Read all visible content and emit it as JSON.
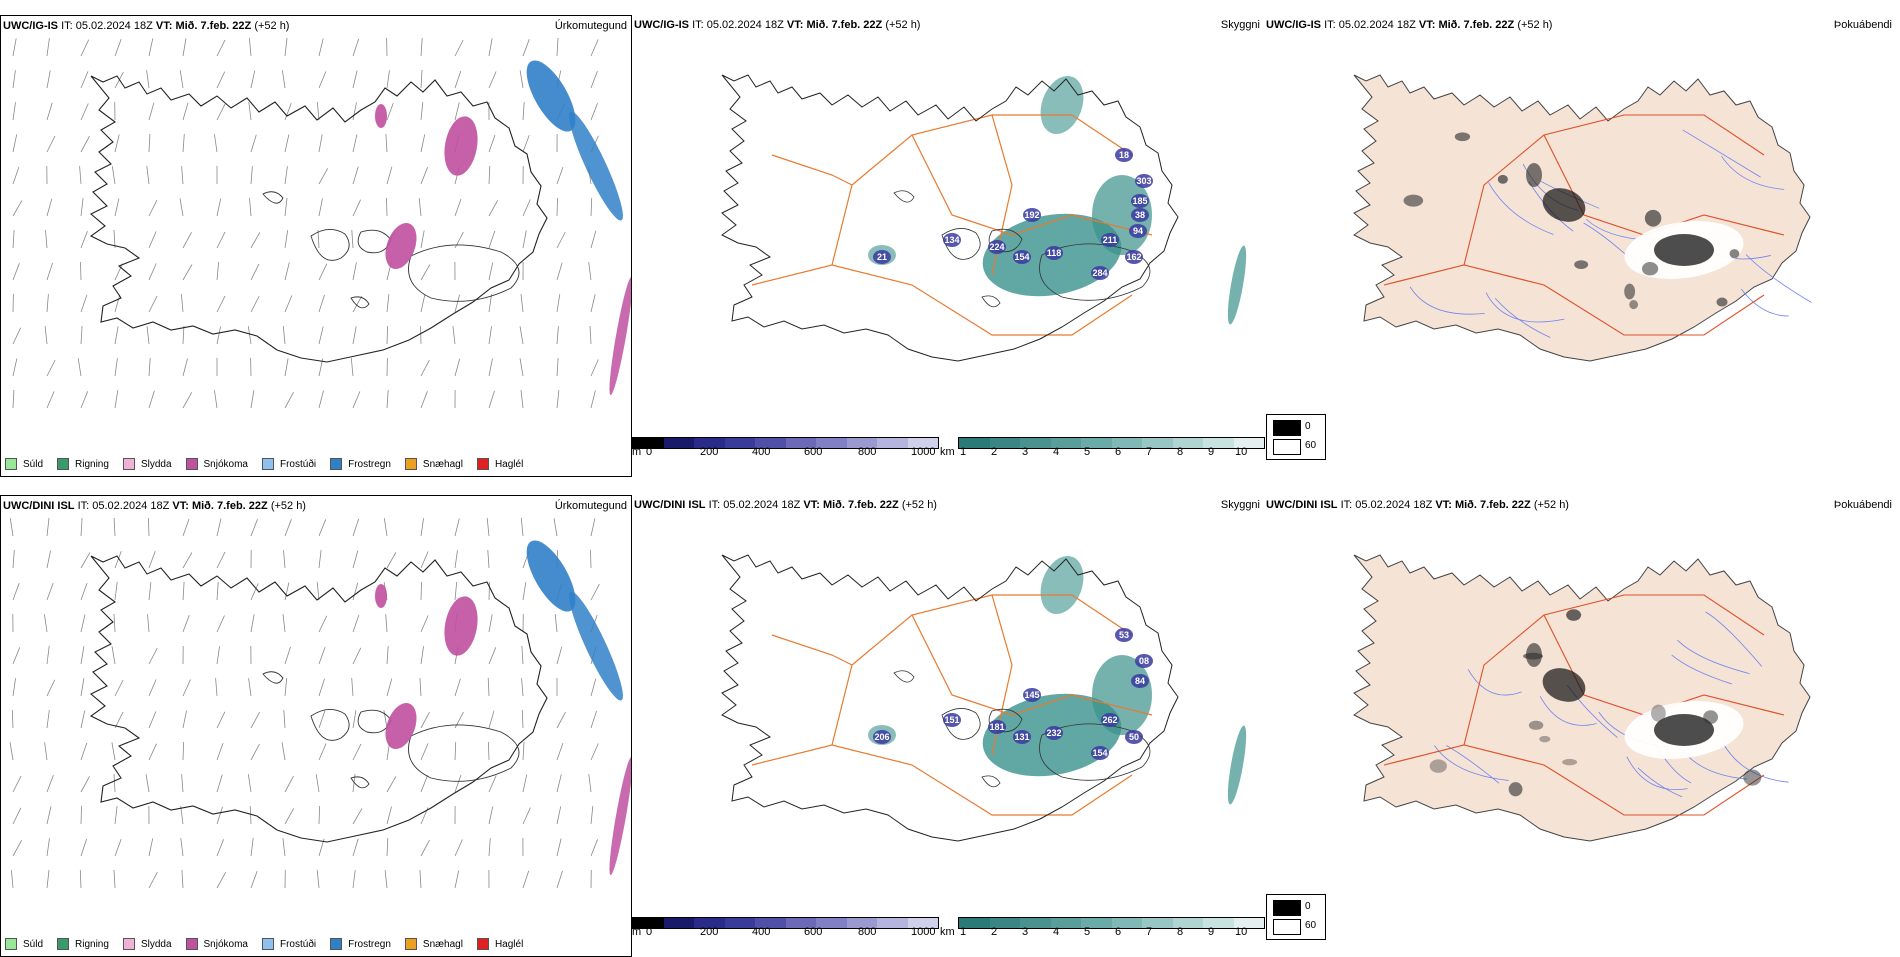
{
  "rows": [
    {
      "model": "UWC/IG-IS",
      "it_label": "IT:",
      "it_value": "05.02.2024 18Z",
      "vt_label": "VT:",
      "vt_value": "Mið. 7.feb. 22Z",
      "lead": "(+52 h)",
      "titles": {
        "precip": "Úrkomutegund",
        "vis": "Skyggni",
        "fog": "Þokuábendi"
      },
      "ceiling_labels": [
        "134",
        "21",
        "224",
        "154",
        "118",
        "192",
        "211",
        "162",
        "284",
        "18",
        "303",
        "185",
        "38",
        "94"
      ]
    },
    {
      "model": "UWC/DINI ISL",
      "it_label": "IT:",
      "it_value": "05.02.2024 18Z",
      "vt_label": "VT:",
      "vt_value": "Mið. 7.feb. 22Z",
      "lead": "(+52 h)",
      "titles": {
        "precip": "Úrkomutegund",
        "vis": "Skyggni",
        "fog": "Þokuábendi"
      },
      "ceiling_labels": [
        "151",
        "206",
        "181",
        "131",
        "232",
        "145",
        "262",
        "50",
        "154",
        "53",
        "08",
        "84"
      ]
    }
  ],
  "precip_legend": [
    {
      "label": "Súld",
      "color": "#98e898"
    },
    {
      "label": "Rigning",
      "color": "#3a9a6a"
    },
    {
      "label": "Slydda",
      "color": "#f0b0d8"
    },
    {
      "label": "Snjókoma",
      "color": "#c050a0"
    },
    {
      "label": "Frostúði",
      "color": "#90c0f0"
    },
    {
      "label": "Frostregn",
      "color": "#3080c8"
    },
    {
      "label": "Snæhagl",
      "color": "#f0a020"
    },
    {
      "label": "Haglél",
      "color": "#e02020"
    }
  ],
  "ceiling_scale": {
    "unit": "m",
    "ticks": [
      "0",
      "200",
      "400",
      "600",
      "800",
      "1000"
    ],
    "colors": [
      "#000000",
      "#1a1a6a",
      "#2a2a8a",
      "#3a3a9a",
      "#5050a8",
      "#6a6ab8",
      "#8080c4",
      "#9a9ad0",
      "#b4b4dc",
      "#d0d0ea"
    ]
  },
  "visibility_scale": {
    "unit": "km",
    "ticks": [
      "1",
      "2",
      "3",
      "4",
      "5",
      "6",
      "7",
      "8",
      "9",
      "10"
    ],
    "colors": [
      "#2a7a78",
      "#3a8684",
      "#4a9290",
      "#5a9e9c",
      "#6aaaa8",
      "#80b8b6",
      "#98c6c4",
      "#b0d4d2",
      "#c8e2e0",
      "#e4f0ef"
    ]
  },
  "fog_scale": {
    "high": "0",
    "low": "60",
    "high_color": "#000000",
    "low_color": "#ffffff"
  },
  "colors": {
    "land_fog": "#f5e3d6",
    "roads": "#e87a30",
    "rivers": "#6f84f0",
    "snow": "#c050a0",
    "frost_rain": "#3080c8",
    "vis_teal": "#3a918c",
    "ceiling_blue": "#3a3aa0"
  }
}
